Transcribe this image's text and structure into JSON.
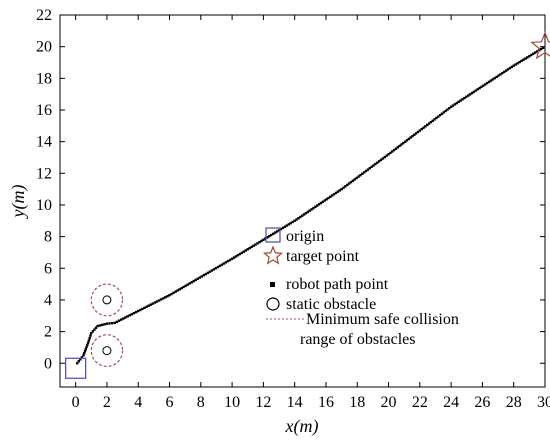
{
  "chart_data": {
    "type": "scatter",
    "xlabel": "x(m)",
    "ylabel": "y(m)",
    "xlim": [
      -1,
      30
    ],
    "ylim": [
      -1.5,
      22
    ],
    "xticks": [
      0,
      2,
      4,
      6,
      8,
      10,
      12,
      14,
      16,
      18,
      20,
      22,
      24,
      26,
      28,
      30
    ],
    "yticks": [
      0,
      2,
      4,
      6,
      8,
      10,
      12,
      14,
      16,
      18,
      20,
      22
    ],
    "grid": false,
    "legend_position": "center-right",
    "legend": [
      {
        "label": "origin",
        "marker": "square",
        "color": "#4a4ab0"
      },
      {
        "label": "target point",
        "marker": "star",
        "color": "#9c4a3a"
      },
      {
        "label": "robot path point",
        "marker": "filled-square",
        "color": "#000000"
      },
      {
        "label": "static obstacle",
        "marker": "circle",
        "color": "#000000"
      },
      {
        "label": "Minimum safe collision\nrange of obstacles",
        "marker": "dashed-line",
        "color": "#b05050"
      }
    ],
    "origin": {
      "x": 0,
      "y": 0
    },
    "target": {
      "x": 30,
      "y": 20
    },
    "obstacles": [
      {
        "x": 2,
        "y": 4,
        "safe_radius": 1.0
      },
      {
        "x": 2,
        "y": 0.8,
        "safe_radius": 1.0
      }
    ],
    "path_waypoints": [
      [
        0.1,
        0.0
      ],
      [
        0.5,
        0.5
      ],
      [
        0.8,
        1.3
      ],
      [
        1.0,
        1.9
      ],
      [
        1.4,
        2.35
      ],
      [
        2.0,
        2.5
      ],
      [
        2.5,
        2.55
      ],
      [
        4.0,
        3.3
      ],
      [
        6.0,
        4.3
      ],
      [
        10.0,
        6.6
      ],
      [
        14.0,
        9.0
      ],
      [
        17.0,
        11.0
      ],
      [
        20.0,
        13.2
      ],
      [
        24.0,
        16.2
      ],
      [
        28.0,
        18.8
      ],
      [
        30.0,
        20.0
      ]
    ],
    "colors": {
      "origin": "#4a4ab0",
      "target": "#9c4a3a",
      "path": "#000000",
      "obstacle": "#000000",
      "safe_range": "#b05050"
    }
  }
}
